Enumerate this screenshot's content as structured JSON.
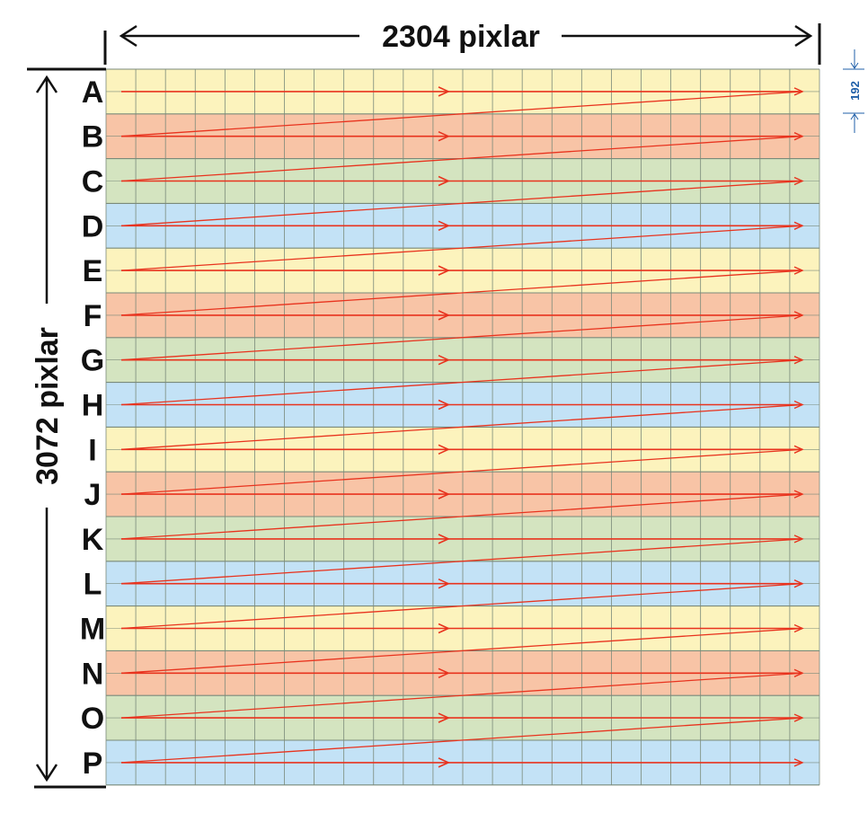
{
  "width_label": "2304 pixlar",
  "height_label": "3072 pixlar",
  "strip_label": "192",
  "rows": [
    {
      "label": "A",
      "color": "#fcf3bd"
    },
    {
      "label": "B",
      "color": "#f8c4a6"
    },
    {
      "label": "C",
      "color": "#d4e4c0"
    },
    {
      "label": "D",
      "color": "#c3e2f6"
    },
    {
      "label": "E",
      "color": "#fcf3bd"
    },
    {
      "label": "F",
      "color": "#f8c4a6"
    },
    {
      "label": "G",
      "color": "#d4e4c0"
    },
    {
      "label": "H",
      "color": "#c3e2f6"
    },
    {
      "label": "I",
      "color": "#fcf3bd"
    },
    {
      "label": "J",
      "color": "#f8c4a6"
    },
    {
      "label": "K",
      "color": "#d4e4c0"
    },
    {
      "label": "L",
      "color": "#c3e2f6"
    },
    {
      "label": "M",
      "color": "#fcf3bd"
    },
    {
      "label": "N",
      "color": "#f8c4a6"
    },
    {
      "label": "O",
      "color": "#d4e4c0"
    },
    {
      "label": "P",
      "color": "#c3e2f6"
    }
  ],
  "columns_per_row": 24,
  "scan_line_color": "#e8331e",
  "grid_line_color": "#7a8a7a"
}
